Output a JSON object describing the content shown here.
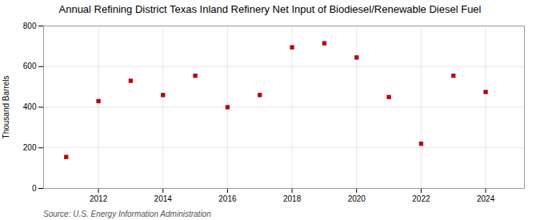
{
  "chart_data": {
    "type": "scatter",
    "title": "Annual Refining District Texas Inland Refinery Net Input of Biodiesel/Renewable Diesel Fuel",
    "ylabel": "Thousand Barrels",
    "source": "Source: U.S. Energy Information Administration",
    "x": [
      2011,
      2012,
      2013,
      2014,
      2015,
      2016,
      2017,
      2018,
      2019,
      2020,
      2021,
      2022,
      2023,
      2024
    ],
    "values": [
      155,
      430,
      530,
      460,
      555,
      400,
      460,
      695,
      715,
      645,
      450,
      220,
      555,
      475
    ],
    "color": "#c00000",
    "marker": "square",
    "xlim": [
      2010.3,
      2025.2
    ],
    "xticks": [
      2012,
      2014,
      2016,
      2018,
      2020,
      2022,
      2024
    ],
    "ylim": [
      0,
      800
    ],
    "yticks": [
      0,
      200,
      400,
      600,
      800
    ],
    "grid": true
  }
}
